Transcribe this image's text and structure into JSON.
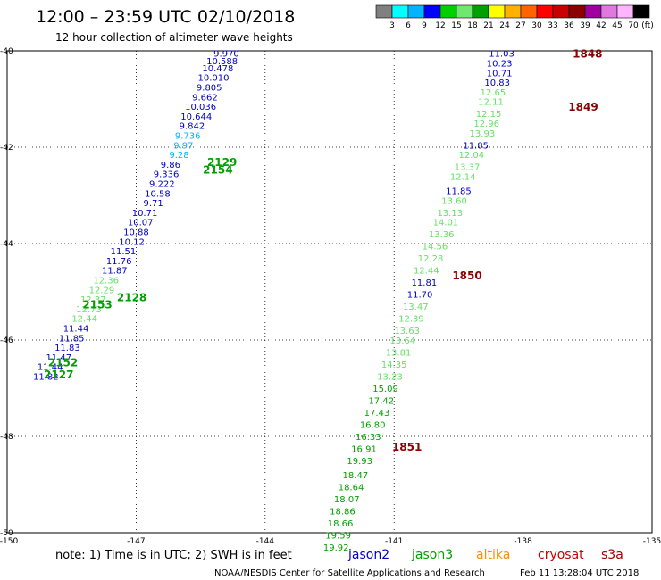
{
  "title": "12:00 – 23:59 UTC 02/10/2018",
  "subtitle": "12 hour collection of altimeter wave heights",
  "colorbar": {
    "colors": [
      "#808080",
      "#00ffff",
      "#00b4ff",
      "#0000ff",
      "#00d000",
      "#6ee86e",
      "#00a000",
      "#ffff00",
      "#ffb000",
      "#ff6400",
      "#ff0000",
      "#c80000",
      "#8c0000",
      "#a000a0",
      "#e078e0",
      "#ffb4ff",
      "#000000"
    ],
    "labels": [
      "3",
      "6",
      "9",
      "12",
      "15",
      "18",
      "21",
      "24",
      "27",
      "30",
      "33",
      "36",
      "39",
      "42",
      "45",
      "70"
    ],
    "unit": "(ft)"
  },
  "axes": {
    "lon_min": -150,
    "lon_max": -135,
    "lat_min": -50,
    "lat_max": -40,
    "x_ticks": [
      -150,
      -147,
      -144,
      -141,
      -138,
      -135
    ],
    "y_ticks": [
      -40,
      -42,
      -44,
      -46,
      -48,
      -50
    ],
    "x_labels": [
      "-150",
      "-147",
      "-144",
      "-141",
      "-138",
      "-135"
    ],
    "y_labels": [
      "-40",
      "-42",
      "-44",
      "-46",
      "-48",
      "-50"
    ],
    "grid": "dotted"
  },
  "colors": {
    "jason2": "#0000c8",
    "jason3": "#00a000",
    "altika": "#ff8c00",
    "cryosat": "#c80000",
    "s3a": "#a00000",
    "pass_dark_red": "#8c0000",
    "light_green": "#66e066",
    "cyan": "#00b4ff"
  },
  "tracks": [
    {
      "satellite": "jason2",
      "observations": [
        {
          "lon": -138.5,
          "lat": -40.05,
          "swh": "11.03",
          "color": "#0000c8"
        },
        {
          "lon": -138.55,
          "lat": -40.25,
          "swh": "10.23",
          "color": "#0000c8"
        },
        {
          "lon": -138.55,
          "lat": -40.45,
          "swh": "10.71",
          "color": "#0000c8"
        },
        {
          "lon": -138.6,
          "lat": -40.65,
          "swh": "10.83",
          "color": "#0000c8"
        },
        {
          "lon": -138.7,
          "lat": -40.85,
          "swh": "12.65",
          "color": "#66e066"
        },
        {
          "lon": -138.75,
          "lat": -41.05,
          "swh": "12.11",
          "color": "#66e066"
        },
        {
          "lon": -138.8,
          "lat": -41.3,
          "swh": "12.15",
          "color": "#66e066"
        },
        {
          "lon": -138.85,
          "lat": -41.5,
          "swh": "12.96",
          "color": "#66e066"
        },
        {
          "lon": -138.95,
          "lat": -41.7,
          "swh": "13.93",
          "color": "#66e066"
        },
        {
          "lon": -139.1,
          "lat": -41.95,
          "swh": "11.85",
          "color": "#0000c8"
        },
        {
          "lon": -139.2,
          "lat": -42.15,
          "swh": "12.04",
          "color": "#66e066"
        },
        {
          "lon": -139.3,
          "lat": -42.4,
          "swh": "13.37",
          "color": "#66e066"
        },
        {
          "lon": -139.4,
          "lat": -42.6,
          "swh": "12.14",
          "color": "#66e066"
        },
        {
          "lon": -139.5,
          "lat": -42.9,
          "swh": "11.85",
          "color": "#0000c8"
        },
        {
          "lon": -139.6,
          "lat": -43.1,
          "swh": "13.60",
          "color": "#66e066"
        },
        {
          "lon": -139.7,
          "lat": -43.35,
          "swh": "13.13",
          "color": "#66e066"
        },
        {
          "lon": -139.8,
          "lat": -43.55,
          "swh": "14.01",
          "color": "#66e066"
        },
        {
          "lon": -139.9,
          "lat": -43.8,
          "swh": "13.36",
          "color": "#66e066"
        },
        {
          "lon": -140.05,
          "lat": -44.05,
          "swh": "14.56",
          "color": "#66e066"
        },
        {
          "lon": -140.15,
          "lat": -44.3,
          "swh": "12.28",
          "color": "#66e066"
        },
        {
          "lon": -140.25,
          "lat": -44.55,
          "swh": "12.44",
          "color": "#66e066"
        },
        {
          "lon": -140.3,
          "lat": -44.8,
          "swh": "11.81",
          "color": "#0000c8"
        },
        {
          "lon": -140.4,
          "lat": -45.05,
          "swh": "11.70",
          "color": "#0000c8"
        },
        {
          "lon": -140.5,
          "lat": -45.3,
          "swh": "13.47",
          "color": "#66e066"
        },
        {
          "lon": -140.6,
          "lat": -45.55,
          "swh": "12.39",
          "color": "#66e066"
        },
        {
          "lon": -140.7,
          "lat": -45.8,
          "swh": "13.63",
          "color": "#66e066"
        },
        {
          "lon": -140.8,
          "lat": -46.0,
          "swh": "13.64",
          "color": "#66e066"
        },
        {
          "lon": -140.9,
          "lat": -46.25,
          "swh": "13.81",
          "color": "#66e066"
        },
        {
          "lon": -141.0,
          "lat": -46.5,
          "swh": "14.35",
          "color": "#66e066"
        },
        {
          "lon": -141.1,
          "lat": -46.75,
          "swh": "13.23",
          "color": "#66e066"
        },
        {
          "lon": -141.2,
          "lat": -47.0,
          "swh": "15.09",
          "color": "#00a000"
        },
        {
          "lon": -141.3,
          "lat": -47.25,
          "swh": "17.42",
          "color": "#00a000"
        },
        {
          "lon": -141.4,
          "lat": -47.5,
          "swh": "17.43",
          "color": "#00a000"
        },
        {
          "lon": -141.5,
          "lat": -47.75,
          "swh": "16.80",
          "color": "#00a000"
        },
        {
          "lon": -141.6,
          "lat": -48.0,
          "swh": "16.33",
          "color": "#00a000"
        },
        {
          "lon": -141.7,
          "lat": -48.25,
          "swh": "16.91",
          "color": "#00a000"
        },
        {
          "lon": -141.8,
          "lat": -48.5,
          "swh": "19.93",
          "color": "#00a000"
        },
        {
          "lon": -141.9,
          "lat": -48.8,
          "swh": "18.47",
          "color": "#00a000"
        },
        {
          "lon": -142.0,
          "lat": -49.05,
          "swh": "18.64",
          "color": "#00a000"
        },
        {
          "lon": -142.1,
          "lat": -49.3,
          "swh": "18.07",
          "color": "#00a000"
        },
        {
          "lon": -142.2,
          "lat": -49.55,
          "swh": "18.86",
          "color": "#00a000"
        },
        {
          "lon": -142.25,
          "lat": -49.8,
          "swh": "18.66",
          "color": "#00a000"
        },
        {
          "lon": -142.3,
          "lat": -50.05,
          "swh": "19.59",
          "color": "#00a000"
        },
        {
          "lon": -142.35,
          "lat": -50.3,
          "swh": "19.92",
          "color": "#00a000"
        }
      ]
    },
    {
      "satellite": "jason3",
      "observations": [
        {
          "lon": -144.9,
          "lat": -40.05,
          "swh": "9.970",
          "color": "#0000c8"
        },
        {
          "lon": -145.0,
          "lat": -40.2,
          "swh": "10.588",
          "color": "#0000c8"
        },
        {
          "lon": -145.1,
          "lat": -40.35,
          "swh": "10.478",
          "color": "#0000c8"
        },
        {
          "lon": -145.2,
          "lat": -40.55,
          "swh": "10.010",
          "color": "#0000c8"
        },
        {
          "lon": -145.3,
          "lat": -40.75,
          "swh": "9.805",
          "color": "#0000c8"
        },
        {
          "lon": -145.4,
          "lat": -40.95,
          "swh": "9.662",
          "color": "#0000c8"
        },
        {
          "lon": -145.5,
          "lat": -41.15,
          "swh": "10.036",
          "color": "#0000c8"
        },
        {
          "lon": -145.6,
          "lat": -41.35,
          "swh": "10.644",
          "color": "#0000c8"
        },
        {
          "lon": -145.7,
          "lat": -41.55,
          "swh": "9.842",
          "color": "#0000c8"
        },
        {
          "lon": -145.8,
          "lat": -41.75,
          "swh": "9.736",
          "color": "#00b4ff"
        },
        {
          "lon": -145.9,
          "lat": -41.95,
          "swh": "9.97",
          "color": "#00b4ff"
        },
        {
          "lon": -146.0,
          "lat": -42.15,
          "swh": "9.28",
          "color": "#00b4ff"
        },
        {
          "lon": -146.2,
          "lat": -42.35,
          "swh": "9.86",
          "color": "#0000c8"
        },
        {
          "lon": -146.3,
          "lat": -42.55,
          "swh": "9.336",
          "color": "#0000c8"
        },
        {
          "lon": -146.4,
          "lat": -42.75,
          "swh": "9.222",
          "color": "#0000c8"
        },
        {
          "lon": -146.5,
          "lat": -42.95,
          "swh": "10.58",
          "color": "#0000c8"
        },
        {
          "lon": -146.6,
          "lat": -43.15,
          "swh": "9.71",
          "color": "#0000c8"
        },
        {
          "lon": -146.8,
          "lat": -43.35,
          "swh": "10.71",
          "color": "#0000c8"
        },
        {
          "lon": -146.9,
          "lat": -43.55,
          "swh": "10.07",
          "color": "#0000c8"
        },
        {
          "lon": -147.0,
          "lat": -43.75,
          "swh": "10.88",
          "color": "#0000c8"
        },
        {
          "lon": -147.1,
          "lat": -43.95,
          "swh": "10.12",
          "color": "#0000c8"
        },
        {
          "lon": -147.3,
          "lat": -44.15,
          "swh": "11.51",
          "color": "#0000c8"
        },
        {
          "lon": -147.4,
          "lat": -44.35,
          "swh": "11.76",
          "color": "#0000c8"
        },
        {
          "lon": -147.5,
          "lat": -44.55,
          "swh": "11.87",
          "color": "#0000c8"
        },
        {
          "lon": -147.7,
          "lat": -44.75,
          "swh": "12.36",
          "color": "#66e066"
        },
        {
          "lon": -147.8,
          "lat": -44.95,
          "swh": "12.29",
          "color": "#66e066"
        },
        {
          "lon": -148.0,
          "lat": -45.15,
          "swh": "12.37",
          "color": "#66e066"
        },
        {
          "lon": -148.1,
          "lat": -45.35,
          "swh": "12.73",
          "color": "#66e066"
        },
        {
          "lon": -148.2,
          "lat": -45.55,
          "swh": "12.44",
          "color": "#66e066"
        },
        {
          "lon": -148.4,
          "lat": -45.75,
          "swh": "11.44",
          "color": "#0000c8"
        },
        {
          "lon": -148.5,
          "lat": -45.95,
          "swh": "11.85",
          "color": "#0000c8"
        },
        {
          "lon": -148.6,
          "lat": -46.15,
          "swh": "11.83",
          "color": "#0000c8"
        },
        {
          "lon": -148.8,
          "lat": -46.35,
          "swh": "11.47",
          "color": "#0000c8"
        },
        {
          "lon": -149.0,
          "lat": -46.55,
          "swh": "11.44",
          "color": "#0000c8"
        },
        {
          "lon": -149.1,
          "lat": -46.75,
          "swh": "11.82",
          "color": "#0000c8"
        }
      ]
    }
  ],
  "pass_labels": [
    {
      "lon": -136.5,
      "lat": -40.05,
      "text": "1848",
      "color": "#8c0000"
    },
    {
      "lon": -136.6,
      "lat": -41.15,
      "text": "1849",
      "color": "#8c0000"
    },
    {
      "lon": -139.3,
      "lat": -44.65,
      "text": "1850",
      "color": "#8c0000"
    },
    {
      "lon": -140.7,
      "lat": -48.2,
      "text": "1851",
      "color": "#8c0000"
    },
    {
      "lon": -145.0,
      "lat": -42.3,
      "text": "2129",
      "color": "#00a000"
    },
    {
      "lon": -145.1,
      "lat": -42.45,
      "text": "2154",
      "color": "#00a000"
    },
    {
      "lon": -147.1,
      "lat": -45.1,
      "text": "2128",
      "color": "#00a000"
    },
    {
      "lon": -147.9,
      "lat": -45.25,
      "text": "2153",
      "color": "#00a000"
    },
    {
      "lon": -148.7,
      "lat": -46.45,
      "text": "2152",
      "color": "#00a000"
    },
    {
      "lon": -148.8,
      "lat": -46.7,
      "text": "2127",
      "color": "#00a000"
    }
  ],
  "note": "note: 1) Time is in UTC; 2) SWH is in feet",
  "satellites": [
    {
      "name": "jason2",
      "color": "#0000c8"
    },
    {
      "name": "jason3",
      "color": "#00a000"
    },
    {
      "name": "altika",
      "color": "#ff8c00"
    },
    {
      "name": "cryosat",
      "color": "#c80000"
    },
    {
      "name": "s3a",
      "color": "#a00000"
    }
  ],
  "credit_left": "NOAA/NESDIS Center for Satellite Applications and Research",
  "credit_right": "Feb 11 13:28:04 UTC 2018"
}
